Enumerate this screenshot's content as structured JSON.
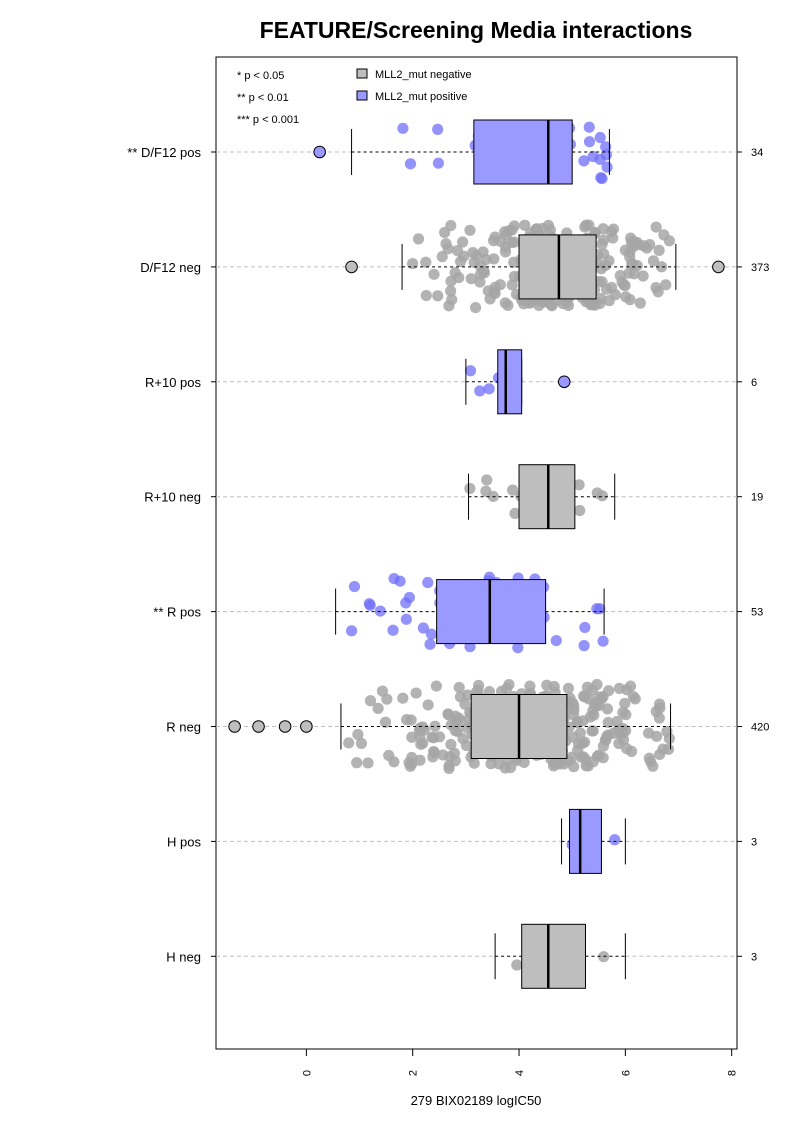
{
  "chart_data": {
    "type": "boxplot",
    "title": "FEATURE/Screening Media interactions",
    "xlabel": "279 BIX02189 logIC50",
    "xlim": [
      -1.7,
      8.1
    ],
    "x_ticks": [
      0,
      2,
      4,
      6,
      8
    ],
    "x_tick_labels": [
      "0",
      "2",
      "4",
      "6",
      "8"
    ],
    "significance_legend": [
      "* p < 0.05",
      "** p < 0.01",
      "*** p < 0.001"
    ],
    "legend": [
      {
        "label": "MLL2_mut negative",
        "color": "#bebebe"
      },
      {
        "label": "MLL2_mut positive",
        "color": "#9999ff"
      }
    ],
    "colors": {
      "negative_box": "#bebebe",
      "positive_box": "#9999ff",
      "negative_point": "#a6a6a6",
      "positive_point": "#6f6ff8",
      "gridline": "#bfbfbf"
    },
    "groups": [
      {
        "label": "** D/F12 pos",
        "n": "34",
        "mut": "positive",
        "q1": 3.15,
        "median": 4.55,
        "q3": 5.0,
        "wlow": 0.85,
        "whigh": 5.7,
        "outliers": [
          0.25
        ],
        "npts": 34
      },
      {
        "label": "D/F12 neg",
        "n": "373",
        "mut": "negative",
        "q1": 4.0,
        "median": 4.75,
        "q3": 5.45,
        "wlow": 1.8,
        "whigh": 6.95,
        "outliers": [
          0.85,
          7.75
        ],
        "npts": 230
      },
      {
        "label": "R+10 pos",
        "n": "6",
        "mut": "positive",
        "q1": 3.6,
        "median": 3.75,
        "q3": 4.05,
        "wlow": 3.0,
        "whigh": 4.05,
        "outliers": [
          4.85
        ],
        "npts": 6
      },
      {
        "label": "R+10 neg",
        "n": "19",
        "mut": "negative",
        "q1": 4.0,
        "median": 4.55,
        "q3": 5.05,
        "wlow": 3.05,
        "whigh": 5.8,
        "outliers": [],
        "npts": 19
      },
      {
        "label": "** R pos",
        "n": "53",
        "mut": "positive",
        "q1": 2.45,
        "median": 3.45,
        "q3": 4.5,
        "wlow": 0.55,
        "whigh": 5.6,
        "outliers": [],
        "npts": 53
      },
      {
        "label": "R neg",
        "n": "420",
        "mut": "negative",
        "q1": 3.1,
        "median": 4.0,
        "q3": 4.9,
        "wlow": 0.65,
        "whigh": 6.85,
        "outliers": [
          -1.35,
          -0.9,
          -0.4,
          0.0
        ],
        "npts": 280
      },
      {
        "label": "H pos",
        "n": "3",
        "mut": "positive",
        "q1": 4.95,
        "median": 5.15,
        "q3": 5.55,
        "wlow": 4.8,
        "whigh": 6.0,
        "outliers": [],
        "npts": 3
      },
      {
        "label": "H neg",
        "n": "3",
        "mut": "negative",
        "q1": 4.05,
        "median": 4.55,
        "q3": 5.25,
        "wlow": 3.55,
        "whigh": 6.0,
        "outliers": [],
        "npts": 3
      }
    ]
  }
}
